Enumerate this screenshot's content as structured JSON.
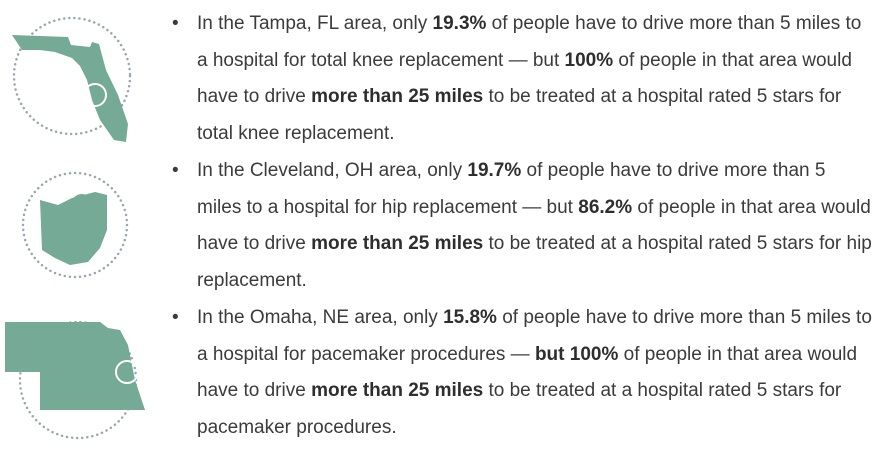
{
  "items": [
    {
      "segments": [
        {
          "text": "In the Tampa, FL area, only ",
          "bold": false
        },
        {
          "text": "19.3%",
          "bold": true
        },
        {
          "text": " of people have to drive more than 5 miles to a hospital for total knee replacement — but ",
          "bold": false
        },
        {
          "text": "100%",
          "bold": true
        },
        {
          "text": " of people in that area would have to drive ",
          "bold": false
        },
        {
          "text": "more than 25 miles",
          "bold": true
        },
        {
          "text": " to be treated at a hospital rated 5 stars for total knee replacement.",
          "bold": false
        }
      ]
    },
    {
      "segments": [
        {
          "text": "In the Cleveland, OH area, only ",
          "bold": false
        },
        {
          "text": "19.7%",
          "bold": true
        },
        {
          "text": " of people have to drive more than 5 miles to a hospital for hip replacement — but ",
          "bold": false
        },
        {
          "text": "86.2%",
          "bold": true
        },
        {
          "text": " of people in that area would have to drive ",
          "bold": false
        },
        {
          "text": "more than 25 miles",
          "bold": true
        },
        {
          "text": " to be treated at a hospital rated 5 stars for hip replacement.",
          "bold": false
        }
      ]
    },
    {
      "segments": [
        {
          "text": "In the Omaha, NE area, only ",
          "bold": false
        },
        {
          "text": "15.8%",
          "bold": true
        },
        {
          "text": " of people have to drive more than 5 miles to a hospital for pacemaker procedures — ",
          "bold": false
        },
        {
          "text": "but 100%",
          "bold": true
        },
        {
          "text": " of people in that area would have to drive ",
          "bold": false
        },
        {
          "text": "more than 25 miles",
          "bold": true
        },
        {
          "text": " to be treated at a hospital rated 5 stars for pacemaker procedures.",
          "bold": false
        }
      ]
    }
  ]
}
